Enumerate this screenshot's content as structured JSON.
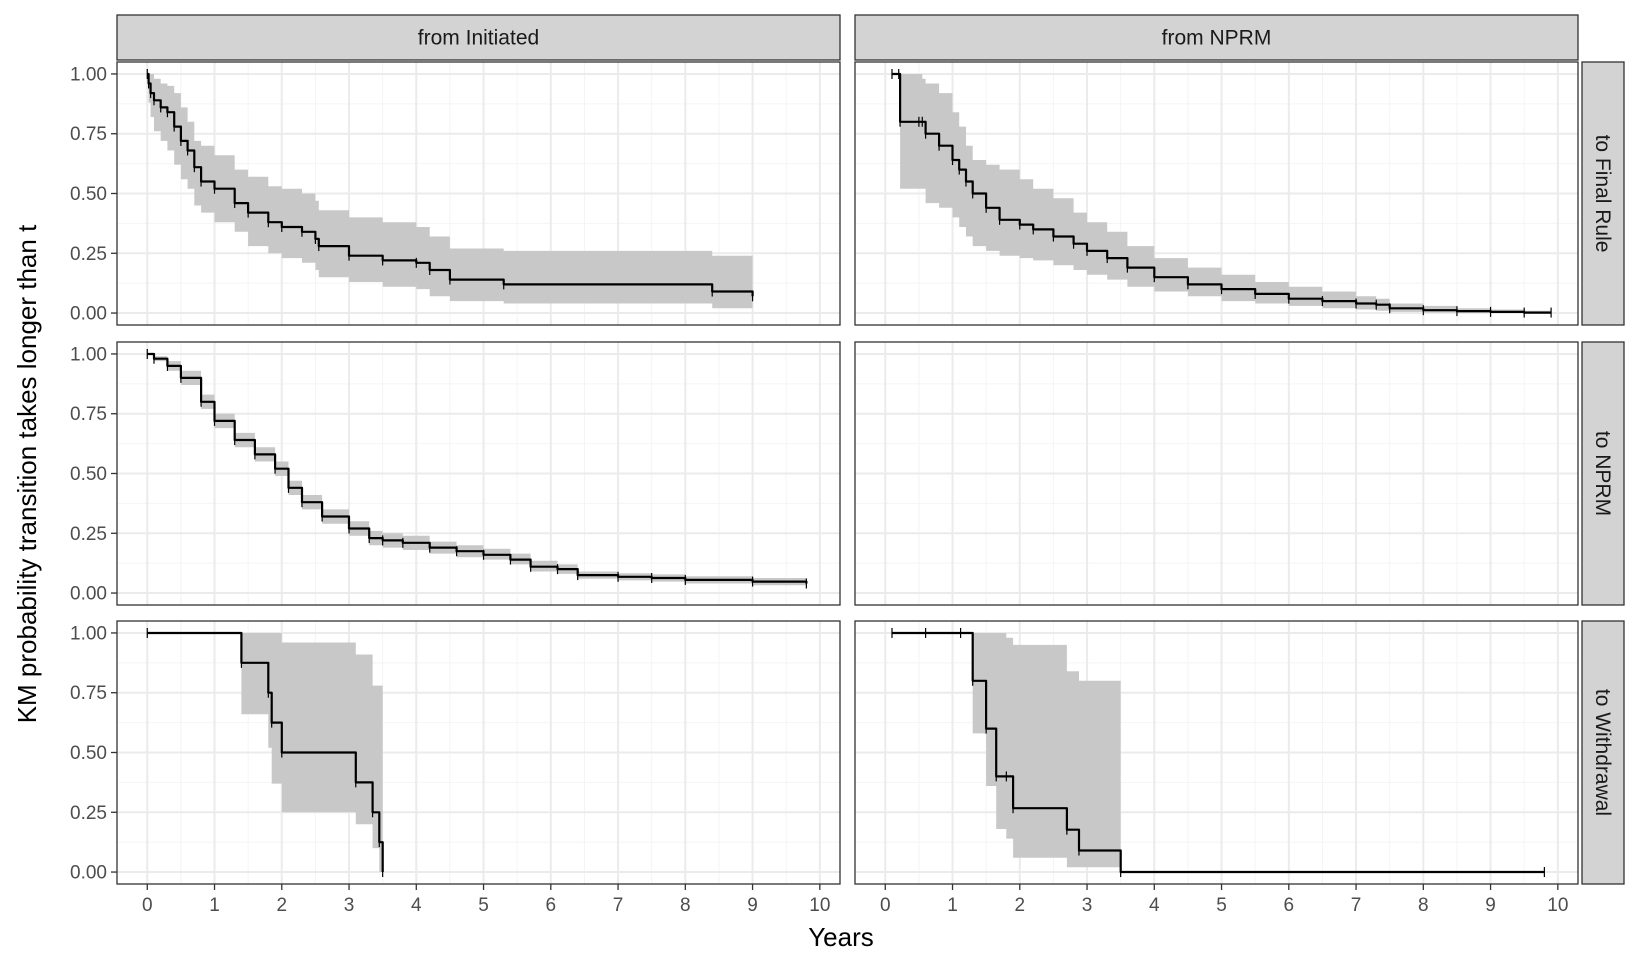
{
  "chart_data": {
    "type": "line",
    "xlabel": "Years",
    "ylabel": "KM probability transition takes longer than t",
    "xlim": [
      -0.45,
      10.3
    ],
    "ylim": [
      -0.05,
      1.05
    ],
    "xticks": [
      0,
      1,
      2,
      3,
      4,
      5,
      6,
      7,
      8,
      9,
      10
    ],
    "xtick_labels": [
      "0",
      "1",
      "2",
      "3",
      "4",
      "5",
      "6",
      "7",
      "8",
      "9",
      "10"
    ],
    "yticks": [
      0,
      0.25,
      0.5,
      0.75,
      1
    ],
    "ytick_labels": [
      "0.00",
      "0.25",
      "0.50",
      "0.75",
      "1.00"
    ],
    "grid": true,
    "col_facets": [
      "from Initiated",
      "from NPRM"
    ],
    "row_facets": [
      "to Final Rule",
      "to NPRM",
      "to Withdrawal"
    ],
    "colors": {
      "line": "#000000",
      "ribbon": "#c8c8c8",
      "strip": "#d3d3d3",
      "grid_major": "#ebebeb",
      "grid_minor": "#f4f4f4",
      "border": "#333333"
    },
    "panels": [
      {
        "col": "from Initiated",
        "row": "to Final Rule",
        "x": [
          0,
          0.02,
          0.05,
          0.1,
          0.2,
          0.3,
          0.4,
          0.5,
          0.6,
          0.7,
          0.8,
          1.0,
          1.3,
          1.5,
          1.8,
          2.0,
          2.3,
          2.5,
          2.55,
          3.0,
          3.5,
          4.0,
          4.2,
          4.5,
          5.3,
          8.4,
          9.0
        ],
        "surv": [
          1.0,
          0.96,
          0.92,
          0.89,
          0.86,
          0.84,
          0.78,
          0.72,
          0.68,
          0.61,
          0.55,
          0.52,
          0.46,
          0.42,
          0.38,
          0.36,
          0.34,
          0.31,
          0.28,
          0.24,
          0.22,
          0.21,
          0.18,
          0.14,
          0.12,
          0.09,
          0.07
        ],
        "lower": [
          1.0,
          0.88,
          0.82,
          0.76,
          0.72,
          0.68,
          0.62,
          0.56,
          0.52,
          0.45,
          0.42,
          0.38,
          0.34,
          0.28,
          0.25,
          0.23,
          0.21,
          0.18,
          0.15,
          0.13,
          0.11,
          0.1,
          0.07,
          0.05,
          0.04,
          0.02,
          0.01
        ],
        "upper": [
          1.0,
          1.0,
          1.0,
          0.98,
          0.96,
          0.95,
          0.92,
          0.86,
          0.8,
          0.72,
          0.7,
          0.66,
          0.6,
          0.57,
          0.53,
          0.52,
          0.5,
          0.47,
          0.43,
          0.4,
          0.38,
          0.36,
          0.32,
          0.27,
          0.26,
          0.24,
          0.2
        ]
      },
      {
        "col": "from NPRM",
        "row": "to Final Rule",
        "x": [
          0.1,
          0.2,
          0.22,
          0.5,
          0.55,
          0.6,
          0.8,
          1.0,
          1.1,
          1.2,
          1.3,
          1.5,
          1.7,
          2.0,
          2.2,
          2.5,
          2.8,
          3.0,
          3.3,
          3.6,
          4.0,
          4.5,
          5.0,
          5.5,
          6.0,
          6.5,
          7.0,
          7.3,
          7.5,
          8.0,
          8.5,
          9.0,
          9.5,
          9.9
        ],
        "surv": [
          1.0,
          1.0,
          0.8,
          0.8,
          0.8,
          0.75,
          0.7,
          0.64,
          0.6,
          0.55,
          0.5,
          0.44,
          0.39,
          0.37,
          0.35,
          0.32,
          0.29,
          0.26,
          0.23,
          0.19,
          0.15,
          0.12,
          0.1,
          0.08,
          0.06,
          0.05,
          0.04,
          0.035,
          0.02,
          0.012,
          0.008,
          0.005,
          0.002,
          0.002
        ],
        "lower": [
          1.0,
          1.0,
          0.52,
          0.52,
          0.52,
          0.46,
          0.44,
          0.4,
          0.36,
          0.32,
          0.28,
          0.26,
          0.24,
          0.23,
          0.22,
          0.2,
          0.18,
          0.16,
          0.14,
          0.11,
          0.09,
          0.07,
          0.05,
          0.04,
          0.03,
          0.02,
          0.015,
          0.01,
          0.005,
          0.002,
          0.0,
          0.0,
          0.0,
          0.0
        ],
        "upper": [
          1.0,
          1.0,
          1.0,
          1.0,
          0.98,
          0.96,
          0.92,
          0.84,
          0.78,
          0.7,
          0.64,
          0.62,
          0.6,
          0.56,
          0.52,
          0.48,
          0.42,
          0.38,
          0.34,
          0.28,
          0.23,
          0.19,
          0.16,
          0.13,
          0.11,
          0.09,
          0.07,
          0.06,
          0.04,
          0.03,
          0.02,
          0.015,
          0.01,
          0.01
        ]
      },
      {
        "col": "from Initiated",
        "row": "to NPRM",
        "x": [
          0,
          0.1,
          0.3,
          0.5,
          0.8,
          1.0,
          1.3,
          1.6,
          1.9,
          2.1,
          2.3,
          2.6,
          3.0,
          3.3,
          3.5,
          3.8,
          4.2,
          4.6,
          5.0,
          5.4,
          5.7,
          6.1,
          6.4,
          7.0,
          7.5,
          8.0,
          9.0,
          9.8
        ],
        "surv": [
          1.0,
          0.98,
          0.95,
          0.9,
          0.8,
          0.72,
          0.64,
          0.58,
          0.52,
          0.44,
          0.38,
          0.32,
          0.27,
          0.23,
          0.22,
          0.21,
          0.19,
          0.175,
          0.16,
          0.14,
          0.11,
          0.1,
          0.075,
          0.068,
          0.063,
          0.055,
          0.048,
          0.04
        ],
        "lower": [
          1.0,
          0.97,
          0.93,
          0.87,
          0.77,
          0.69,
          0.61,
          0.55,
          0.49,
          0.41,
          0.35,
          0.29,
          0.24,
          0.2,
          0.19,
          0.18,
          0.165,
          0.15,
          0.14,
          0.12,
          0.09,
          0.08,
          0.06,
          0.053,
          0.048,
          0.04,
          0.033,
          0.025
        ],
        "upper": [
          1.0,
          0.99,
          0.97,
          0.93,
          0.83,
          0.75,
          0.67,
          0.61,
          0.55,
          0.47,
          0.41,
          0.35,
          0.3,
          0.26,
          0.25,
          0.24,
          0.215,
          0.2,
          0.185,
          0.165,
          0.135,
          0.12,
          0.09,
          0.083,
          0.078,
          0.07,
          0.063,
          0.055
        ]
      },
      {
        "col": "from NPRM",
        "row": "to NPRM",
        "x": [],
        "surv": [],
        "lower": [],
        "upper": []
      },
      {
        "col": "from Initiated",
        "row": "to Withdrawal",
        "x": [
          0,
          1.4,
          1.8,
          1.85,
          2.0,
          3.1,
          3.35,
          3.45,
          3.5
        ],
        "surv": [
          1.0,
          0.875,
          0.75,
          0.625,
          0.5,
          0.375,
          0.25,
          0.125,
          0.0
        ],
        "lower": [
          1.0,
          0.66,
          0.52,
          0.37,
          0.25,
          0.2,
          0.1,
          0.0,
          0.0
        ],
        "upper": [
          1.0,
          1.0,
          1.0,
          1.0,
          0.96,
          0.91,
          0.78,
          0.78,
          0.78
        ]
      },
      {
        "col": "from NPRM",
        "row": "to Withdrawal",
        "x": [
          0.1,
          0.6,
          1.12,
          1.3,
          1.5,
          1.65,
          1.8,
          1.9,
          2.7,
          2.88,
          3.5,
          9.8
        ],
        "surv": [
          1.0,
          1.0,
          1.0,
          0.8,
          0.6,
          0.4,
          0.4,
          0.267,
          0.177,
          0.09,
          0.0,
          0.0
        ],
        "lower": [
          1.0,
          1.0,
          1.0,
          0.58,
          0.36,
          0.18,
          0.14,
          0.06,
          0.02,
          0.02,
          0.0,
          0.0
        ],
        "upper": [
          1.0,
          1.0,
          1.0,
          1.0,
          1.0,
          1.0,
          0.98,
          0.95,
          0.84,
          0.8,
          0.0,
          0.0
        ]
      }
    ]
  }
}
